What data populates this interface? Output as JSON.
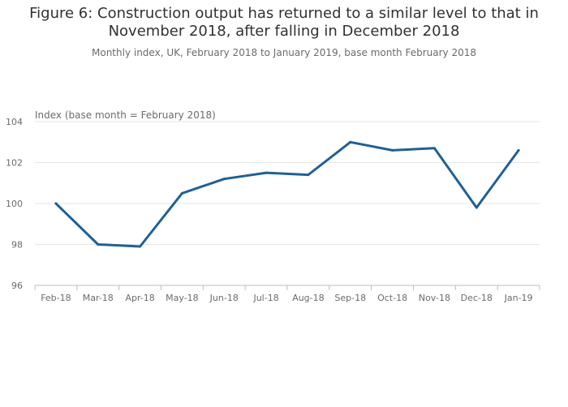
{
  "title_line1": "Figure 6: Construction output has returned to a similar level to that in",
  "title_line2": "November 2018, after falling in December 2018",
  "subtitle": "Monthly index, UK, February 2018 to January 2019, base month February 2018",
  "colors": {
    "line": "#206095",
    "grid": "#e6e6e6",
    "axis": "#bdbdbd"
  },
  "chart_data": {
    "type": "line",
    "title": "Figure 6: Construction output has returned to a similar level to that in November 2018, after falling in December 2018",
    "subtitle": "Monthly index, UK, February 2018 to January 2019, base month February 2018",
    "xlabel": "",
    "ylabel": "Index (base month = February 2018)",
    "categories": [
      "Feb-18",
      "Mar-18",
      "Apr-18",
      "May-18",
      "Jun-18",
      "Jul-18",
      "Aug-18",
      "Sep-18",
      "Oct-18",
      "Nov-18",
      "Dec-18",
      "Jan-19"
    ],
    "series": [
      {
        "values": [
          100.0,
          98.0,
          97.9,
          100.5,
          101.2,
          101.5,
          101.4,
          103.0,
          102.6,
          102.7,
          99.8,
          102.6
        ]
      }
    ],
    "ylim": [
      96,
      104
    ],
    "yticks": [
      96,
      98,
      100,
      102,
      104
    ],
    "grid": true,
    "legend": "none"
  }
}
